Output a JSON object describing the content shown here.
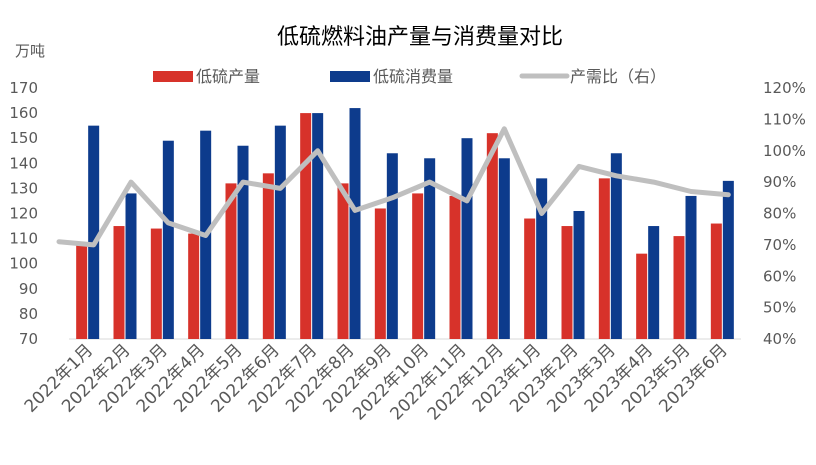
{
  "chart_data": {
    "type": "bar",
    "title": "低硫燃料油产量与消费量对比",
    "y_unit": "万吨",
    "categories": [
      "2022年1月",
      "2022年2月",
      "2022年3月",
      "2022年4月",
      "2022年5月",
      "2022年6月",
      "2022年7月",
      "2022年8月",
      "2022年9月",
      "2022年10月",
      "2022年11月",
      "2022年12月",
      "2023年1月",
      "2023年2月",
      "2023年3月",
      "2023年4月",
      "2023年5月",
      "2023年6月"
    ],
    "series": [
      {
        "name": "低硫产量",
        "type": "bar",
        "axis": "left",
        "color": "#d7322a",
        "values": [
          108,
          115,
          114,
          112,
          132,
          136,
          160,
          132,
          122,
          128,
          127,
          152,
          118,
          115,
          134,
          104,
          111,
          116
        ]
      },
      {
        "name": "低硫消费量",
        "type": "bar",
        "axis": "left",
        "color": "#0d3b8c",
        "values": [
          155,
          128,
          149,
          153,
          147,
          155,
          160,
          162,
          144,
          142,
          150,
          142,
          134,
          121,
          144,
          115,
          127,
          133
        ]
      },
      {
        "name": "产需比（右）",
        "type": "line",
        "axis": "right",
        "color": "#bfbfbf",
        "values": [
          70,
          90,
          77,
          73,
          90,
          88,
          100,
          81,
          85,
          90,
          84,
          107,
          80,
          95,
          92,
          90,
          87,
          86
        ]
      }
    ],
    "y_left": {
      "min": 70,
      "max": 170,
      "step": 10,
      "ticks": [
        "70",
        "80",
        "90",
        "100",
        "110",
        "120",
        "130",
        "140",
        "150",
        "160",
        "170"
      ]
    },
    "y_right": {
      "min": 40,
      "max": 120,
      "step": 10,
      "ticks": [
        "40%",
        "50%",
        "60%",
        "70%",
        "80%",
        "90%",
        "100%",
        "110%",
        "120%"
      ]
    },
    "legend_position": "top",
    "grid": false
  }
}
